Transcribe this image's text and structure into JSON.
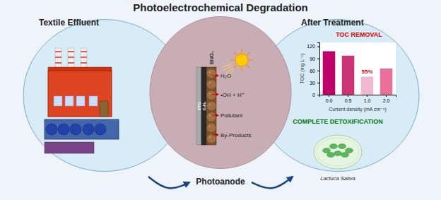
{
  "chart_data": {
    "type": "bar",
    "title": "Photoelectrochemical Degradation",
    "categories": [
      "0.0",
      "0.5",
      "1.0",
      "2.0"
    ],
    "values": [
      108,
      97,
      45,
      65
    ],
    "colors": [
      "#c0006a",
      "#cc3377",
      "#f0b8d0",
      "#e87099"
    ],
    "xlabel": "Current density (mA cm⁻²)",
    "ylabel": "TOC (mg L⁻¹)",
    "ylim": [
      0,
      130
    ],
    "yticks": [
      0,
      30,
      60,
      90,
      120
    ],
    "annotations": [
      {
        "text": "Textile Effluent"
      },
      {
        "text": "Photoanode"
      },
      {
        "text": "After Treatment"
      },
      {
        "text": "TOC REMOVAL",
        "color": "#dd0000"
      },
      {
        "text": "COMPLETE DETOXIFICATION",
        "color": "#007700"
      },
      {
        "text": "Lactuca Sativa"
      },
      {
        "text": "BiVO₄"
      },
      {
        "text": "C₃N₄"
      },
      {
        "text": "FTO"
      },
      {
        "text": "H₂O"
      },
      {
        "text": "•OH + H⁺"
      },
      {
        "text": "Pollutant"
      },
      {
        "text": "By-Products"
      },
      {
        "text": "55%",
        "x": "1.0",
        "color": "#dd0000"
      }
    ]
  }
}
